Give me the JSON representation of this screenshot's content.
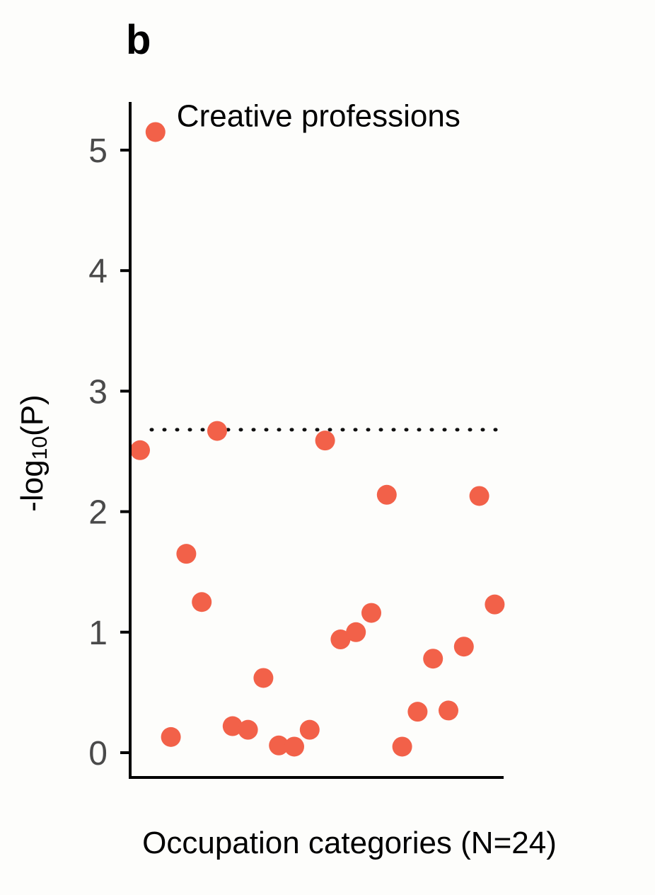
{
  "panel_label": "b",
  "chart_data": {
    "type": "scatter",
    "title": "",
    "xlabel": "Occupation categories (N=24)",
    "ylabel_prefix": "-log",
    "ylabel_sub": "10",
    "ylabel_suffix": "(P)",
    "ylim": [
      0,
      5.4
    ],
    "yticks": [
      0,
      1,
      2,
      3,
      4,
      5
    ],
    "threshold": 2.68,
    "point_color": "#f26149",
    "x": [
      1,
      2,
      3,
      4,
      5,
      6,
      7,
      8,
      9,
      10,
      11,
      12,
      13,
      14,
      15,
      16,
      17,
      18,
      19,
      20,
      21,
      22,
      23,
      24
    ],
    "y": [
      2.51,
      5.15,
      0.13,
      1.65,
      1.25,
      2.67,
      0.22,
      0.19,
      0.62,
      0.06,
      0.05,
      0.19,
      2.59,
      0.94,
      1.0,
      1.16,
      2.14,
      0.05,
      0.34,
      0.78,
      0.35,
      0.88,
      2.13,
      1.23
    ],
    "annotations": [
      {
        "text": "Creative professions",
        "x": 2,
        "y": 5.15
      }
    ],
    "grid": false,
    "legend": "none"
  }
}
